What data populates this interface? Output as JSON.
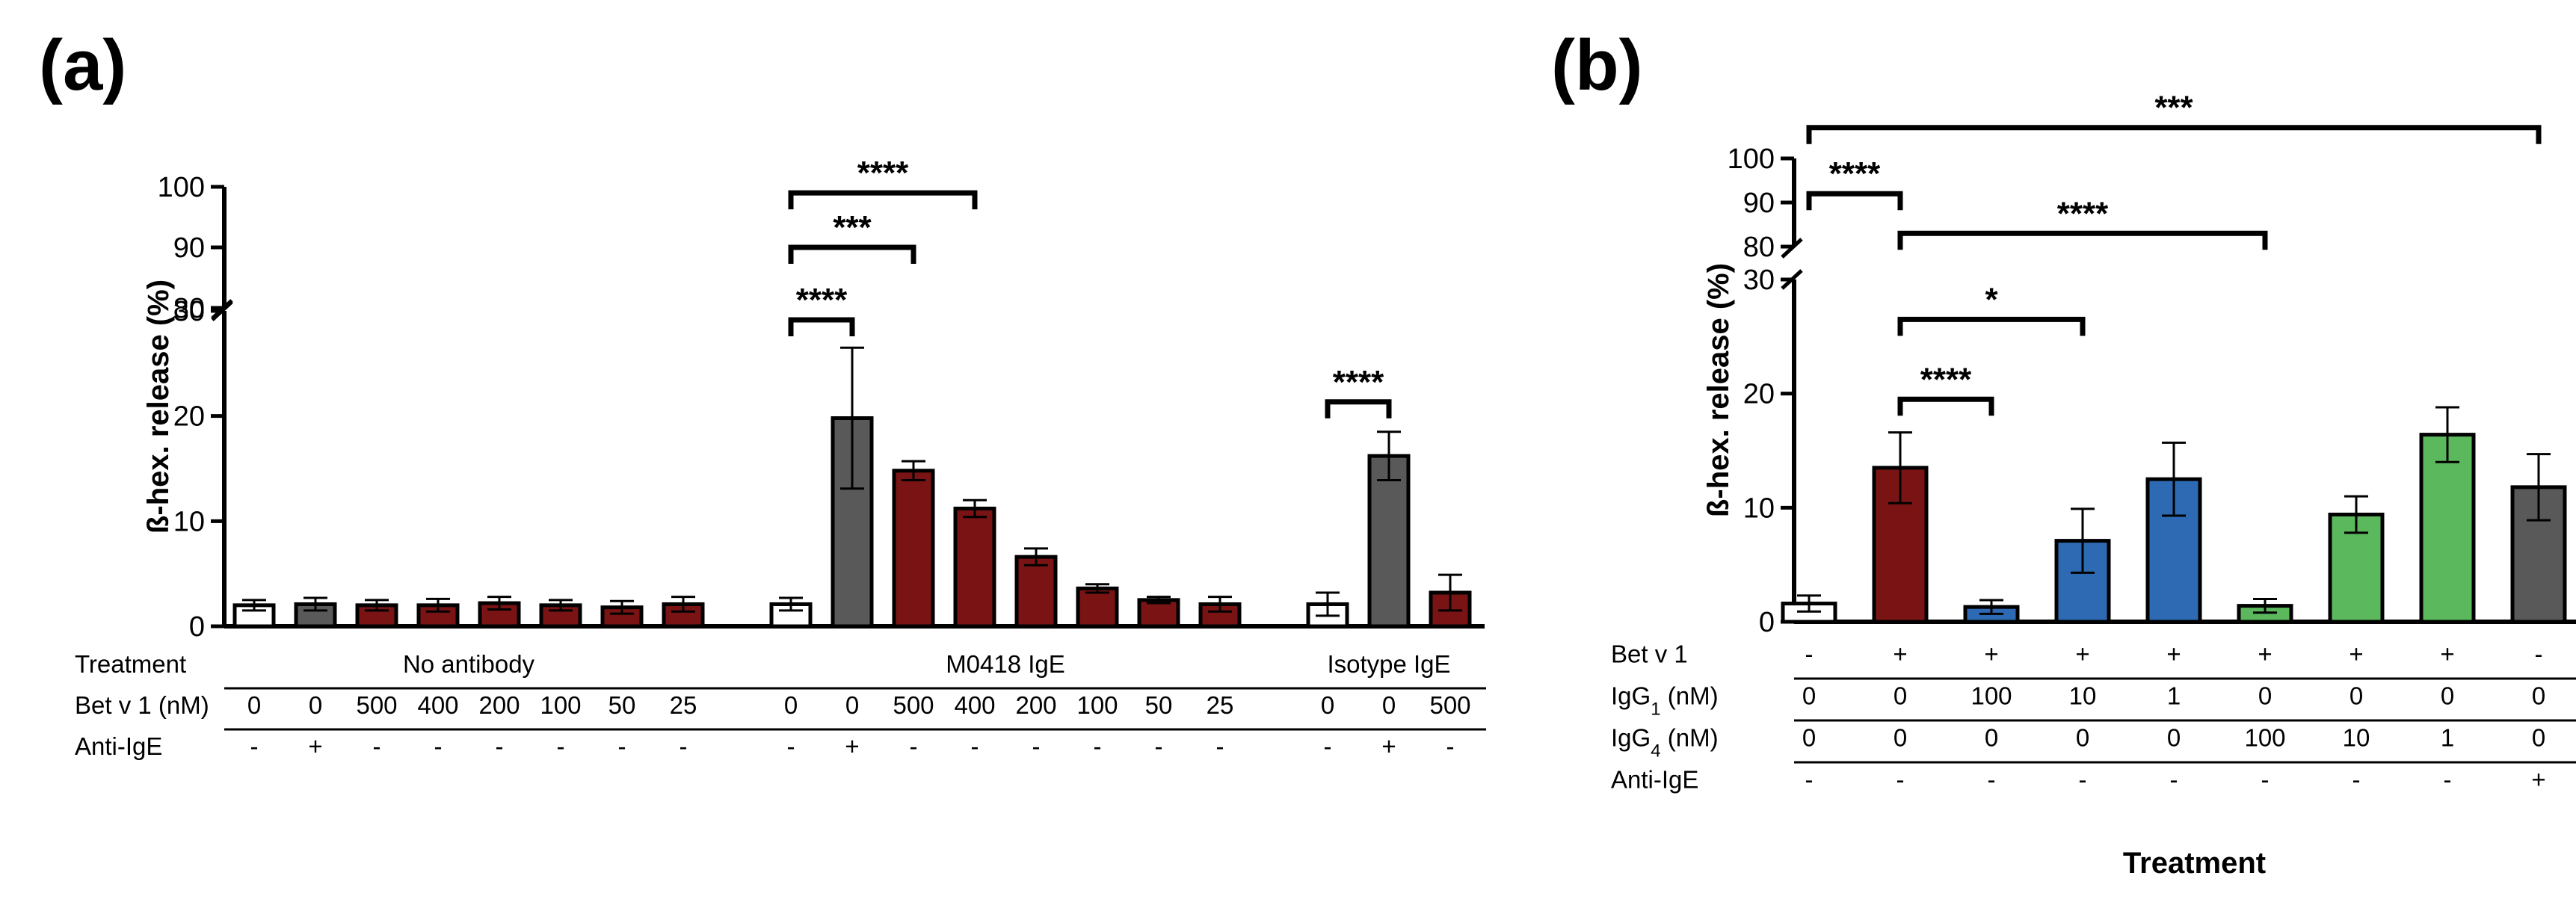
{
  "chart_data": [
    {
      "type": "bar",
      "panel_label": "a",
      "ylabel": "ß-hex. release (%)",
      "y_axis_break": {
        "lower": [
          0,
          30
        ],
        "upper": [
          80,
          100
        ]
      },
      "yticks_lower": [
        "0",
        "10",
        "20",
        "30"
      ],
      "yticks_upper": [
        "80",
        "90",
        "100"
      ],
      "groups": [
        {
          "label": "No antibody",
          "start": 0,
          "end": 7
        },
        {
          "label": "M0418 IgE",
          "start": 8,
          "end": 15
        },
        {
          "label": "Isotype IgE",
          "start": 16,
          "end": 18
        }
      ],
      "table_rows": [
        {
          "label": "Treatment",
          "kind": "group"
        },
        {
          "label": "Bet v 1 (nM)",
          "key": "betv1"
        },
        {
          "label": "Anti-IgE",
          "key": "antiIgE"
        }
      ],
      "bars": [
        {
          "betv1": "0",
          "antiIgE": "-",
          "value": 2.0,
          "error": 0.5,
          "color": "#ffffff"
        },
        {
          "betv1": "0",
          "antiIgE": "+",
          "value": 2.1,
          "error": 0.6,
          "color": "#595959"
        },
        {
          "betv1": "500",
          "antiIgE": "-",
          "value": 2.0,
          "error": 0.5,
          "color": "#7a1414"
        },
        {
          "betv1": "400",
          "antiIgE": "-",
          "value": 2.0,
          "error": 0.6,
          "color": "#7a1414"
        },
        {
          "betv1": "200",
          "antiIgE": "-",
          "value": 2.2,
          "error": 0.6,
          "color": "#7a1414"
        },
        {
          "betv1": "100",
          "antiIgE": "-",
          "value": 2.0,
          "error": 0.5,
          "color": "#7a1414"
        },
        {
          "betv1": "50",
          "antiIgE": "-",
          "value": 1.8,
          "error": 0.6,
          "color": "#7a1414"
        },
        {
          "betv1": "25",
          "antiIgE": "-",
          "value": 2.1,
          "error": 0.7,
          "color": "#7a1414"
        },
        {
          "betv1": "0",
          "antiIgE": "-",
          "value": 2.1,
          "error": 0.6,
          "color": "#ffffff"
        },
        {
          "betv1": "0",
          "antiIgE": "+",
          "value": 19.8,
          "error": 6.7,
          "color": "#595959"
        },
        {
          "betv1": "500",
          "antiIgE": "-",
          "value": 14.8,
          "error": 0.9,
          "color": "#7a1414"
        },
        {
          "betv1": "400",
          "antiIgE": "-",
          "value": 11.2,
          "error": 0.8,
          "color": "#7a1414"
        },
        {
          "betv1": "200",
          "antiIgE": "-",
          "value": 6.6,
          "error": 0.8,
          "color": "#7a1414"
        },
        {
          "betv1": "100",
          "antiIgE": "-",
          "value": 3.6,
          "error": 0.4,
          "color": "#7a1414"
        },
        {
          "betv1": "50",
          "antiIgE": "-",
          "value": 2.5,
          "error": 0.3,
          "color": "#7a1414"
        },
        {
          "betv1": "25",
          "antiIgE": "-",
          "value": 2.1,
          "error": 0.7,
          "color": "#7a1414"
        },
        {
          "betv1": "0",
          "antiIgE": "-",
          "value": 2.1,
          "error": 1.1,
          "color": "#ffffff"
        },
        {
          "betv1": "0",
          "antiIgE": "+",
          "value": 16.2,
          "error": 2.3,
          "color": "#595959"
        },
        {
          "betv1": "500",
          "antiIgE": "-",
          "value": 3.2,
          "error": 1.7,
          "color": "#7a1414"
        }
      ],
      "significance": [
        {
          "from": 8,
          "to": 9,
          "label": "****",
          "region": "lower"
        },
        {
          "from": 8,
          "to": 10,
          "label": "***",
          "region": "upper",
          "level": 90
        },
        {
          "from": 8,
          "to": 11,
          "label": "****",
          "region": "upper",
          "level": 99
        },
        {
          "from": 16,
          "to": 17,
          "label": "****",
          "region": "lower"
        }
      ]
    },
    {
      "type": "bar",
      "panel_label": "b",
      "ylabel": "ß-hex. release (%)",
      "xlabel": "Treatment",
      "y_axis_break": {
        "lower": [
          0,
          30
        ],
        "upper": [
          80,
          100
        ]
      },
      "yticks_lower": [
        "0",
        "10",
        "20",
        "30"
      ],
      "yticks_upper": [
        "80",
        "90",
        "100"
      ],
      "table_rows": [
        {
          "label": "Bet v 1",
          "key": "betv1"
        },
        {
          "label": "IgG",
          "sub": "1",
          "suffix": " (nM)",
          "key": "igg1"
        },
        {
          "label": "IgG",
          "sub": "4",
          "suffix": " (nM)",
          "key": "igg4"
        },
        {
          "label": "Anti-IgE",
          "key": "antiIgE"
        }
      ],
      "bars": [
        {
          "betv1": "-",
          "igg1": "0",
          "igg4": "0",
          "antiIgE": "-",
          "value": 1.6,
          "error": 0.7,
          "color": "#ffffff"
        },
        {
          "betv1": "+",
          "igg1": "0",
          "igg4": "0",
          "antiIgE": "-",
          "value": 13.5,
          "error": 3.1,
          "color": "#7a1414"
        },
        {
          "betv1": "+",
          "igg1": "100",
          "igg4": "0",
          "antiIgE": "-",
          "value": 1.3,
          "error": 0.6,
          "color": "#2e6ab3"
        },
        {
          "betv1": "+",
          "igg1": "10",
          "igg4": "0",
          "antiIgE": "-",
          "value": 7.1,
          "error": 2.8,
          "color": "#2e6ab3"
        },
        {
          "betv1": "+",
          "igg1": "1",
          "igg4": "0",
          "antiIgE": "-",
          "value": 12.5,
          "error": 3.2,
          "color": "#2e6ab3"
        },
        {
          "betv1": "+",
          "igg1": "0",
          "igg4": "100",
          "antiIgE": "-",
          "value": 1.4,
          "error": 0.6,
          "color": "#5cb85c"
        },
        {
          "betv1": "+",
          "igg1": "0",
          "igg4": "10",
          "antiIgE": "-",
          "value": 9.4,
          "error": 1.6,
          "color": "#5cb85c"
        },
        {
          "betv1": "+",
          "igg1": "0",
          "igg4": "1",
          "antiIgE": "-",
          "value": 16.4,
          "error": 2.4,
          "color": "#5cb85c"
        },
        {
          "betv1": "-",
          "igg1": "0",
          "igg4": "0",
          "antiIgE": "+",
          "value": 11.8,
          "error": 2.9,
          "color": "#595959"
        }
      ],
      "significance": [
        {
          "from": 1,
          "to": 2,
          "label": "****",
          "region": "lower",
          "level": 19.5
        },
        {
          "from": 1,
          "to": 3,
          "label": "*",
          "region": "lower",
          "level": 26.5
        },
        {
          "from": 1,
          "to": 5,
          "label": "****",
          "region": "upper",
          "level": 83
        },
        {
          "from": 0,
          "to": 1,
          "label": "****",
          "region": "upper",
          "level": 92
        },
        {
          "from": 0,
          "to": 8,
          "label": "***",
          "region": "upper",
          "level": 107
        }
      ]
    }
  ]
}
